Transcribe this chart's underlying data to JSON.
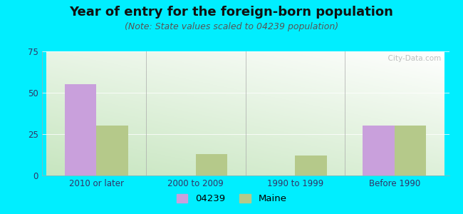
{
  "title": "Year of entry for the foreign-born population",
  "subtitle": "(Note: State values scaled to 04239 population)",
  "categories": [
    "2010 or later",
    "2000 to 2009",
    "1990 to 1999",
    "Before 1990"
  ],
  "series": [
    {
      "label": "04239",
      "values": [
        55,
        0,
        0,
        30
      ],
      "color": "#c9a0dc"
    },
    {
      "label": "Maine",
      "values": [
        30,
        13,
        12,
        30
      ],
      "color": "#b5c98a"
    }
  ],
  "ylim": [
    0,
    75
  ],
  "yticks": [
    0,
    25,
    50,
    75
  ],
  "bar_width": 0.32,
  "bg_color": "#00eeff",
  "plot_bg_top_left": "#d4ecd4",
  "plot_bg_top_right": "#ffffff",
  "plot_bg_bottom": "#c8e0c0",
  "title_fontsize": 13,
  "subtitle_fontsize": 9,
  "tick_fontsize": 8.5,
  "legend_fontsize": 9.5,
  "title_color": "#111111",
  "subtitle_color": "#555555",
  "tick_color": "#333366",
  "watermark": "  City-Data.com"
}
